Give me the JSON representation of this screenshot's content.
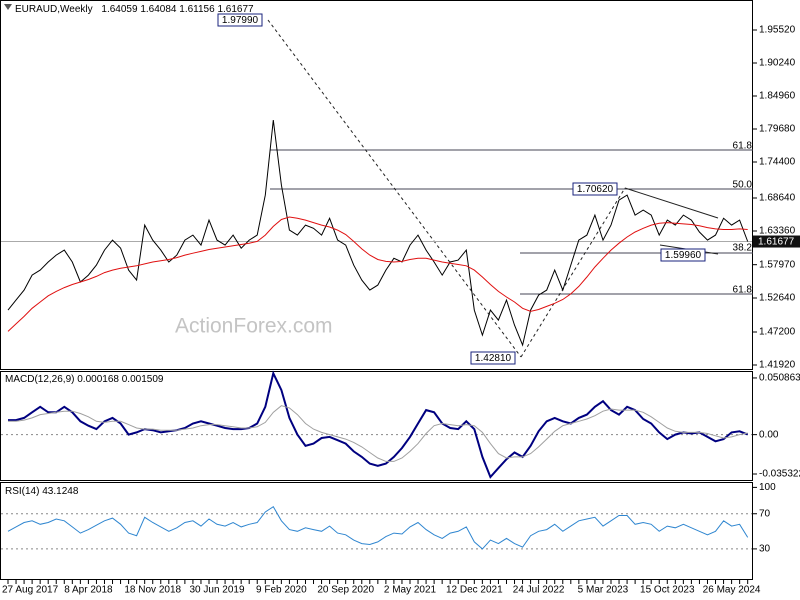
{
  "chart_data": [
    {
      "type": "line",
      "title": "EURAUD,Weekly",
      "header_values": [
        1.64059,
        1.64084,
        1.61156,
        1.61677
      ],
      "categories": [
        null,
        null,
        "27 Aug 2017",
        null,
        null,
        null,
        null,
        null,
        null,
        null,
        "8 Apr 2018",
        null,
        null,
        null,
        null,
        null,
        null,
        null,
        "18 Nov 2018",
        null,
        null,
        null,
        null,
        null,
        null,
        null,
        "30 Jun 2019",
        null,
        null,
        null,
        null,
        null,
        null,
        null,
        "9 Feb 2020",
        null,
        null,
        null,
        null,
        null,
        null,
        null,
        "20 Sep 2020",
        null,
        null,
        null,
        null,
        null,
        null,
        null,
        "2 May 2021",
        null,
        null,
        null,
        null,
        null,
        null,
        null,
        "12 Dec 2021",
        null,
        null,
        null,
        null,
        null,
        null,
        null,
        "24 Jul 2022",
        null,
        null,
        null,
        null,
        null,
        null,
        null,
        "5 Mar 2023",
        null,
        null,
        null,
        null,
        null,
        null,
        null,
        "15 Oct 2023",
        null,
        null,
        null,
        null,
        null,
        null,
        null,
        "26 May 2024",
        null,
        null
      ],
      "series": [
        {
          "color": "#000000",
          "values": [
            1.507,
            1.523,
            1.539,
            1.563,
            1.571,
            1.584,
            1.595,
            1.603,
            1.584,
            1.552,
            1.563,
            1.579,
            1.603,
            1.619,
            1.606,
            1.571,
            1.555,
            1.643,
            1.619,
            1.603,
            1.584,
            1.595,
            1.619,
            1.627,
            1.611,
            1.651,
            1.619,
            1.611,
            1.627,
            1.606,
            1.619,
            1.627,
            1.691,
            1.811,
            1.707,
            1.635,
            1.627,
            1.643,
            1.638,
            1.627,
            1.654,
            1.619,
            1.611,
            1.579,
            1.555,
            1.539,
            1.547,
            1.571,
            1.59,
            1.584,
            1.611,
            1.627,
            1.603,
            1.584,
            1.563,
            1.584,
            1.587,
            1.603,
            1.507,
            1.467,
            1.507,
            1.491,
            1.523,
            1.483,
            1.451,
            1.507,
            1.531,
            1.539,
            1.571,
            1.539,
            1.579,
            1.619,
            1.627,
            1.659,
            1.619,
            1.643,
            1.683,
            1.691,
            1.659,
            1.667,
            1.659,
            1.627,
            1.651,
            1.643,
            1.659,
            1.651,
            1.632,
            1.619,
            1.627,
            1.654,
            1.643,
            1.651,
            1.61677
          ]
        },
        {
          "color": "#e01010",
          "values": [
            1.473,
            1.485,
            1.497,
            1.51,
            1.52,
            1.53,
            1.537,
            1.543,
            1.548,
            1.552,
            1.556,
            1.561,
            1.567,
            1.571,
            1.574,
            1.576,
            1.578,
            1.581,
            1.584,
            1.586,
            1.588,
            1.591,
            1.595,
            1.598,
            1.601,
            1.604,
            1.606,
            1.608,
            1.61,
            1.612,
            1.614,
            1.617,
            1.627,
            1.641,
            1.652,
            1.656,
            1.654,
            1.651,
            1.647,
            1.643,
            1.64,
            1.635,
            1.628,
            1.617,
            1.605,
            1.595,
            1.588,
            1.585,
            1.584,
            1.585,
            1.588,
            1.59,
            1.59,
            1.587,
            1.584,
            1.582,
            1.58,
            1.578,
            1.571,
            1.56,
            1.548,
            1.537,
            1.528,
            1.52,
            1.51,
            1.505,
            1.508,
            1.513,
            1.518,
            1.524,
            1.533,
            1.545,
            1.56,
            1.576,
            1.59,
            1.603,
            1.614,
            1.624,
            1.632,
            1.638,
            1.643,
            1.646,
            1.647,
            1.646,
            1.645,
            1.644,
            1.642,
            1.639,
            1.637,
            1.636,
            1.636,
            1.637,
            1.636
          ]
        }
      ],
      "ylim": [
        1.4112,
        2.0032
      ],
      "yticks": [
        {
          "value": 1.9552,
          "label": "1.95520"
        },
        {
          "value": 1.9024,
          "label": "1.90240"
        },
        {
          "value": 1.8496,
          "label": "1.84960"
        },
        {
          "value": 1.7968,
          "label": "1.79680"
        },
        {
          "value": 1.744,
          "label": "1.74400"
        },
        {
          "value": 1.6864,
          "label": "1.68640"
        },
        {
          "value": 1.6336,
          "label": "1.63360"
        },
        {
          "value": 1.5797,
          "label": "1.57970"
        },
        {
          "value": 1.5264,
          "label": "1.52640"
        },
        {
          "value": 1.472,
          "label": "1.47200"
        },
        {
          "value": 1.4192,
          "label": "1.41920"
        }
      ],
      "annotations": [
        "1.97990",
        "1.70620",
        "1.59960",
        "1.42810"
      ],
      "fib_labels": [
        "61.8",
        "50.0",
        "38.2",
        "61.8"
      ],
      "watermark": "ActionForex.com"
    },
    {
      "type": "line",
      "title": "MACD(12,26,9)",
      "series": [
        {
          "color": "#000080",
          "values": [
            0.013,
            0.013,
            0.015,
            0.02,
            0.025,
            0.02,
            0.02,
            0.025,
            0.02,
            0.012,
            0.008,
            0.005,
            0.012,
            0.015,
            0.01,
            0,
            0.002,
            0.005,
            0.004,
            0.002,
            0.003,
            0.004,
            0.006,
            0.01,
            0.012,
            0.01,
            0.008,
            0.006,
            0.005,
            0.005,
            0.006,
            0.01,
            0.025,
            0.055,
            0.04,
            0.015,
            0,
            -0.01,
            -0.008,
            -0.003,
            -0.002,
            -0.005,
            -0.008,
            -0.015,
            -0.02,
            -0.026,
            -0.028,
            -0.026,
            -0.02,
            -0.012,
            -0.002,
            0.01,
            0.022,
            0.02,
            0.01,
            0.006,
            0.005,
            0.012,
            0.005,
            -0.02,
            -0.038,
            -0.03,
            -0.022,
            -0.016,
            -0.02,
            -0.01,
            0.003,
            0.012,
            0.015,
            0.012,
            0.01,
            0.015,
            0.018,
            0.025,
            0.03,
            0.022,
            0.018,
            0.025,
            0.022,
            0.014,
            0.01,
            0.002,
            -0.004,
            0,
            0.002,
            0.001,
            0.002,
            -0.002,
            -0.006,
            -0.004,
            0.002,
            0.003,
            0.000168
          ]
        },
        {
          "color": "#a0a0a0",
          "values": [
            0.012,
            0.012,
            0.013,
            0.015,
            0.018,
            0.019,
            0.02,
            0.021,
            0.021,
            0.019,
            0.016,
            0.012,
            0.011,
            0.012,
            0.012,
            0.009,
            0.006,
            0.005,
            0.005,
            0.004,
            0.004,
            0.004,
            0.005,
            0.006,
            0.008,
            0.009,
            0.009,
            0.008,
            0.007,
            0.006,
            0.006,
            0.007,
            0.011,
            0.02,
            0.026,
            0.024,
            0.018,
            0.01,
            0.005,
            0.002,
            0,
            -0.002,
            -0.004,
            -0.007,
            -0.011,
            -0.016,
            -0.021,
            -0.024,
            -0.024,
            -0.021,
            -0.015,
            -0.008,
            0.001,
            0.008,
            0.01,
            0.009,
            0.008,
            0.009,
            0.008,
            0.002,
            -0.008,
            -0.017,
            -0.021,
            -0.02,
            -0.02,
            -0.017,
            -0.011,
            -0.004,
            0.003,
            0.008,
            0.01,
            0.012,
            0.014,
            0.017,
            0.021,
            0.023,
            0.022,
            0.022,
            0.022,
            0.02,
            0.016,
            0.011,
            0.006,
            0.003,
            0.002,
            0.002,
            0.002,
            0.001,
            -0.001,
            -0.003,
            -0.002,
            0,
            0.001509
          ]
        }
      ],
      "ylim": [
        -0.0416,
        0.0571
      ],
      "yticks": [
        0.050863,
        {
          "value": 0,
          "label": "0.00"
        },
        -0.035322
      ]
    },
    {
      "type": "line",
      "title": "RSI(14)",
      "series": [
        {
          "color": "#2f86d0",
          "values": [
            50,
            55,
            60,
            62,
            58,
            60,
            64,
            62,
            55,
            48,
            52,
            57,
            62,
            65,
            58,
            48,
            45,
            66,
            60,
            55,
            50,
            54,
            60,
            62,
            56,
            64,
            58,
            56,
            60,
            55,
            58,
            60,
            72,
            78,
            62,
            52,
            50,
            54,
            52,
            50,
            56,
            48,
            46,
            40,
            36,
            35,
            38,
            44,
            48,
            47,
            55,
            60,
            52,
            46,
            42,
            48,
            50,
            55,
            38,
            30,
            40,
            36,
            42,
            36,
            32,
            45,
            50,
            52,
            58,
            50,
            56,
            62,
            64,
            66,
            56,
            62,
            68,
            68,
            58,
            60,
            58,
            50,
            56,
            54,
            58,
            54,
            50,
            46,
            50,
            62,
            56,
            58,
            43.1248
          ]
        }
      ],
      "ylim": [
        -5.4,
        105
      ],
      "yticks": [
        100,
        70,
        30
      ]
    }
  ]
}
